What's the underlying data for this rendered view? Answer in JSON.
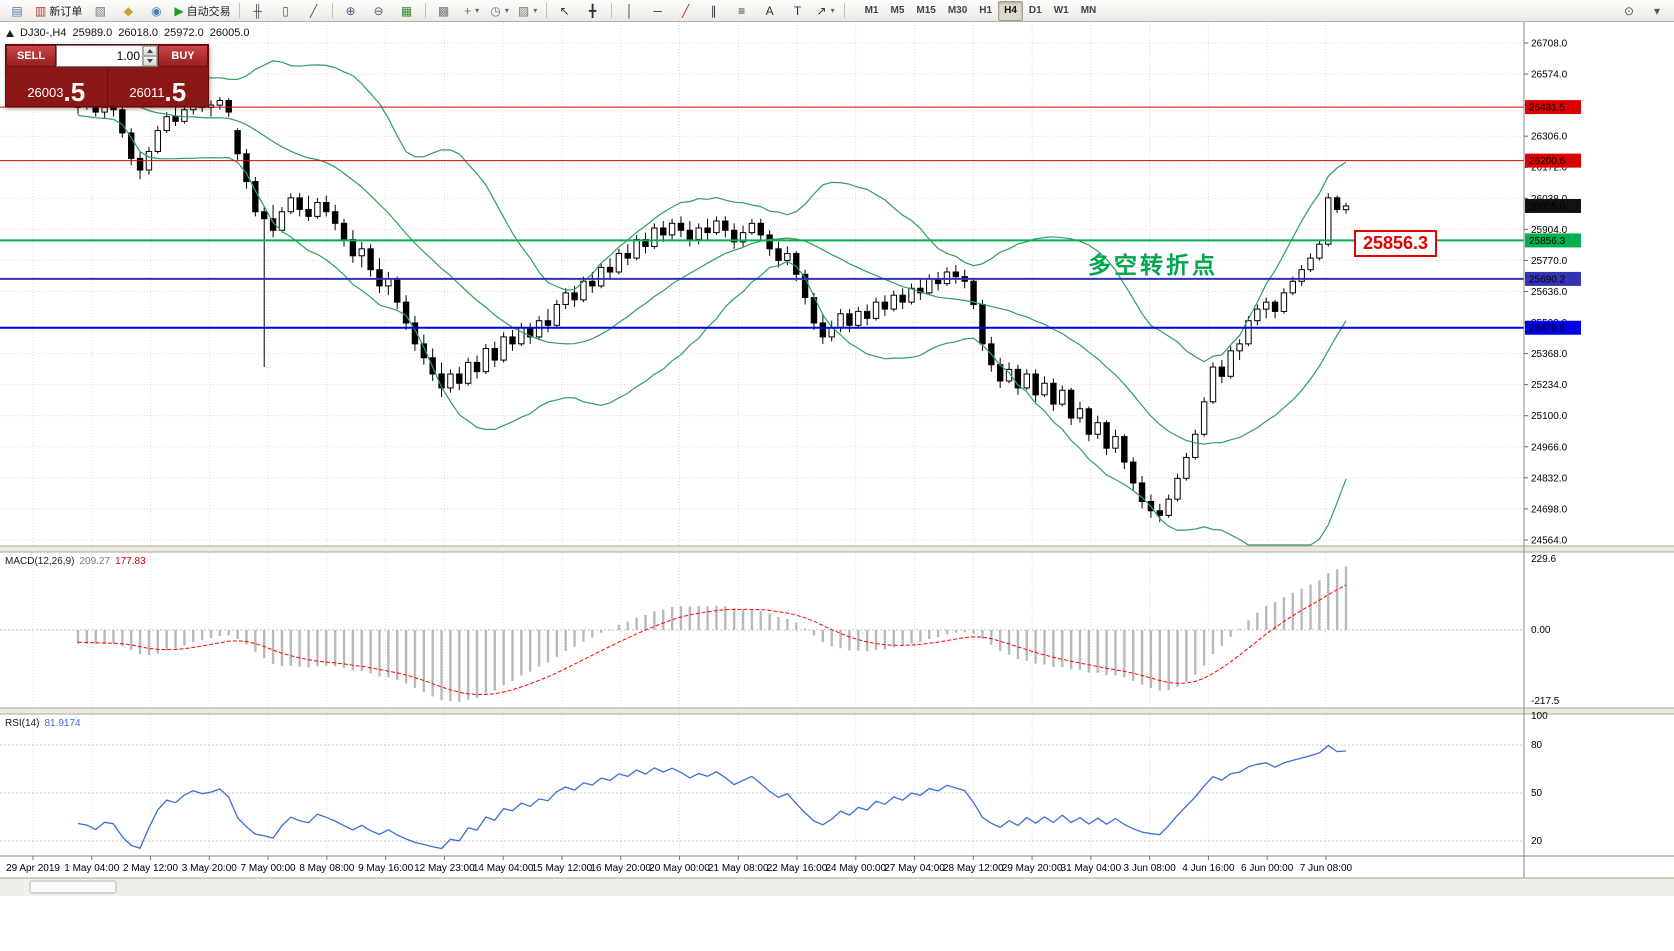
{
  "toolbar": {
    "groups": [
      [
        {
          "name": "mini-chart-icon",
          "glyph": "▤",
          "color": "#4a7ab5"
        },
        {
          "name": "new-order-button",
          "glyph": "▥",
          "color": "#b03a3a",
          "label": "新订单"
        },
        {
          "name": "chart-windows-icon",
          "glyph": "▧",
          "color": "#777777"
        },
        {
          "name": "profiles-icon",
          "glyph": "◆",
          "color": "#c9a227"
        },
        {
          "name": "market-watch-icon",
          "glyph": "◉",
          "color": "#4a7ab5"
        },
        {
          "name": "autotrading-button",
          "glyph": "▶",
          "color": "#1d9e1d",
          "label": "自动交易"
        }
      ],
      [
        {
          "name": "bar-chart-type-icon",
          "glyph": "╫",
          "color": "#555555"
        },
        {
          "name": "candlestick-chart-type-icon",
          "glyph": "▯",
          "color": "#555555"
        },
        {
          "name": "line-chart-type-icon",
          "glyph": "╱",
          "color": "#555555"
        }
      ],
      [
        {
          "name": "zoom-in-icon",
          "glyph": "⊕",
          "color": "#4f5d8a"
        },
        {
          "name": "zoom-out-icon",
          "glyph": "⊖",
          "color": "#4f5d8a"
        },
        {
          "name": "tile-windows-icon",
          "glyph": "▦",
          "color": "#2c8c2c"
        }
      ],
      [
        {
          "name": "navigator-icon",
          "glyph": "▩",
          "color": "#777777"
        },
        {
          "name": "indicators-icon",
          "glyph": "+",
          "color": "#1d9e1d",
          "dropdown": true
        },
        {
          "name": "periods-icon",
          "glyph": "◷",
          "color": "#4a7ab5",
          "dropdown": true
        },
        {
          "name": "templates-icon",
          "glyph": "▨",
          "color": "#777777",
          "dropdown": true
        }
      ],
      [
        {
          "name": "cursor-icon",
          "glyph": "↖",
          "color": "#333333"
        },
        {
          "name": "crosshair-icon",
          "glyph": "╋",
          "color": "#333333"
        }
      ],
      [
        {
          "name": "vertical-line-icon",
          "glyph": "│",
          "color": "#333333"
        },
        {
          "name": "horizontal-line-icon",
          "glyph": "─",
          "color": "#333333"
        },
        {
          "name": "trendline-icon",
          "glyph": "╱",
          "color": "#cc2a2a"
        },
        {
          "name": "channel-icon",
          "glyph": "∥",
          "color": "#333333"
        },
        {
          "name": "fibonacci-icon",
          "glyph": "≡",
          "color": "#333333"
        },
        {
          "name": "text-icon",
          "glyph": "A",
          "color": "#333333"
        },
        {
          "name": "text-label-icon",
          "glyph": "T",
          "color": "#333333"
        },
        {
          "name": "arrows-icon",
          "glyph": "↗",
          "color": "#333333",
          "dropdown": true
        }
      ]
    ],
    "timeframes": [
      "M1",
      "M5",
      "M15",
      "M30",
      "H1",
      "H4",
      "D1",
      "W1",
      "MN"
    ],
    "active_timeframe": "H4",
    "right_icons": [
      {
        "name": "search-icon",
        "glyph": "⊙",
        "color": "#555555"
      },
      {
        "name": "quick-help-icon",
        "glyph": "▾",
        "color": "#555555"
      }
    ]
  },
  "chart_header": {
    "symbol_period": "DJ30-,H4",
    "open": "25989.0",
    "high": "26018.0",
    "low": "25972.0",
    "close": "26005.0"
  },
  "trade_panel": {
    "sell_label": "SELL",
    "buy_label": "BUY",
    "volume": "1.00",
    "sell_price_main": "26003",
    "sell_price_big": ".5",
    "buy_price_main": "26011",
    "buy_price_big": ".5"
  },
  "chart": {
    "annotation_text": "多空转折点",
    "annotation_color": "#00a64f",
    "floating_price_label": "25856.3",
    "current_price_tag": {
      "label": "26005.0",
      "price": 26005.0,
      "color": "#111111"
    },
    "hlines": [
      {
        "price": 26431.5,
        "label": "26431.5",
        "color": "#dd0000",
        "width": 1
      },
      {
        "price": 26200.6,
        "label": "26200.6",
        "color": "#dd0000",
        "width": 1
      },
      {
        "price": 25856.3,
        "label": "25856.3",
        "color": "#00b050",
        "width": 2
      },
      {
        "price": 25690.2,
        "label": "25690.2",
        "color": "#3434b0",
        "width": 2
      },
      {
        "price": 25479.6,
        "label": "25479.6",
        "color": "#0000e6",
        "width": 2
      }
    ],
    "price_axis_ticks": [
      "26708.0",
      "26574.0",
      "26440.0",
      "26306.0",
      "26172.0",
      "26038.0",
      "25904.0",
      "25770.0",
      "25636.0",
      "25502.0",
      "25368.0",
      "25234.0",
      "25100.0",
      "24966.0",
      "24832.0",
      "24698.0",
      "24564.0"
    ]
  },
  "macd_panel": {
    "name": "MACD(12,26,9)",
    "value_main": "209.27",
    "value_signal": "177.83",
    "axis_labels": [
      "229.6",
      "0.00",
      "-217.5"
    ]
  },
  "rsi_panel": {
    "name": "RSI(14)",
    "value": "81.9174",
    "axis_labels": [
      "100",
      "80",
      "50",
      "20"
    ],
    "levels": [
      80,
      50,
      20
    ]
  },
  "chart_data": {
    "type": "candlestick",
    "symbol": "DJ30-",
    "timeframe": "H4",
    "x_labels": [
      "29 Apr 2019",
      "1 May 04:00",
      "2 May 12:00",
      "3 May 20:00",
      "7 May 00:00",
      "8 May 08:00",
      "9 May 16:00",
      "12 May 23:00",
      "14 May 04:00",
      "15 May 12:00",
      "16 May 20:00",
      "20 May 00:00",
      "21 May 08:00",
      "22 May 16:00",
      "24 May 00:00",
      "27 May 04:00",
      "28 May 12:00",
      "29 May 20:00",
      "31 May 04:00",
      "3 Jun 08:00",
      "4 Jun 16:00",
      "6 Jun 00:00",
      "7 Jun 08:00"
    ],
    "overlays": [
      {
        "name": "Bollinger Bands",
        "period": 20,
        "deviation": 2
      }
    ],
    "offscreen_history_closes": [
      26640,
      26610,
      26630,
      26600,
      26580,
      26600,
      26560,
      26540,
      26560,
      26520,
      26500,
      26520,
      26490,
      26470,
      26490,
      26460,
      26450,
      26470,
      26440,
      26430
    ],
    "candles": [
      [
        26430,
        26470,
        26400,
        26450
      ],
      [
        26450,
        26480,
        26420,
        26440
      ],
      [
        26440,
        26460,
        26390,
        26410
      ],
      [
        26410,
        26450,
        26380,
        26430
      ],
      [
        26430,
        26450,
        26390,
        26420
      ],
      [
        26420,
        26430,
        26300,
        26320
      ],
      [
        26320,
        26340,
        26180,
        26210
      ],
      [
        26210,
        26240,
        26120,
        26160
      ],
      [
        26160,
        26260,
        26140,
        26240
      ],
      [
        26240,
        26350,
        26230,
        26330
      ],
      [
        26330,
        26410,
        26320,
        26390
      ],
      [
        26390,
        26430,
        26350,
        26370
      ],
      [
        26370,
        26440,
        26360,
        26420
      ],
      [
        26420,
        26470,
        26400,
        26450
      ],
      [
        26450,
        26480,
        26410,
        26430
      ],
      [
        26430,
        26460,
        26390,
        26440
      ],
      [
        26440,
        26475,
        26420,
        26460
      ],
      [
        26460,
        26470,
        26390,
        26410
      ],
      [
        26330,
        26340,
        26200,
        26230
      ],
      [
        26230,
        26250,
        26080,
        26110
      ],
      [
        26110,
        26130,
        25960,
        25980
      ],
      [
        25980,
        26000,
        25310,
        25950
      ],
      [
        25950,
        26010,
        25870,
        25900
      ],
      [
        25900,
        26000,
        25890,
        25980
      ],
      [
        25980,
        26060,
        25970,
        26040
      ],
      [
        26040,
        26060,
        25960,
        25990
      ],
      [
        25990,
        26050,
        25940,
        25960
      ],
      [
        25960,
        26040,
        25950,
        26020
      ],
      [
        26020,
        26050,
        25960,
        25980
      ],
      [
        25980,
        26010,
        25900,
        25930
      ],
      [
        25930,
        25950,
        25830,
        25860
      ],
      [
        25860,
        25900,
        25760,
        25790
      ],
      [
        25790,
        25850,
        25740,
        25820
      ],
      [
        25820,
        25840,
        25700,
        25730
      ],
      [
        25730,
        25780,
        25630,
        25660
      ],
      [
        25660,
        25720,
        25620,
        25690
      ],
      [
        25690,
        25700,
        25560,
        25590
      ],
      [
        25590,
        25620,
        25470,
        25500
      ],
      [
        25500,
        25530,
        25380,
        25410
      ],
      [
        25410,
        25450,
        25320,
        25350
      ],
      [
        25350,
        25390,
        25250,
        25280
      ],
      [
        25280,
        25330,
        25180,
        25220
      ],
      [
        25220,
        25300,
        25200,
        25280
      ],
      [
        25280,
        25310,
        25210,
        25240
      ],
      [
        25240,
        25350,
        25230,
        25330
      ],
      [
        25330,
        25360,
        25260,
        25290
      ],
      [
        25290,
        25410,
        25280,
        25390
      ],
      [
        25390,
        25420,
        25310,
        25340
      ],
      [
        25340,
        25460,
        25330,
        25440
      ],
      [
        25440,
        25470,
        25380,
        25410
      ],
      [
        25410,
        25500,
        25400,
        25480
      ],
      [
        25480,
        25500,
        25410,
        25440
      ],
      [
        25440,
        25530,
        25430,
        25510
      ],
      [
        25510,
        25560,
        25460,
        25490
      ],
      [
        25490,
        25600,
        25480,
        25580
      ],
      [
        25580,
        25650,
        25560,
        25630
      ],
      [
        25630,
        25660,
        25570,
        25600
      ],
      [
        25600,
        25700,
        25590,
        25680
      ],
      [
        25680,
        25720,
        25630,
        25660
      ],
      [
        25660,
        25760,
        25650,
        25740
      ],
      [
        25740,
        25780,
        25690,
        25720
      ],
      [
        25720,
        25820,
        25710,
        25800
      ],
      [
        25800,
        25840,
        25750,
        25780
      ],
      [
        25780,
        25880,
        25770,
        25860
      ],
      [
        25860,
        25890,
        25800,
        25830
      ],
      [
        25830,
        25930,
        25820,
        25910
      ],
      [
        25910,
        25940,
        25850,
        25880
      ],
      [
        25880,
        25950,
        25860,
        25930
      ],
      [
        25930,
        25960,
        25870,
        25900
      ],
      [
        25900,
        25940,
        25830,
        25860
      ],
      [
        25860,
        25930,
        25840,
        25910
      ],
      [
        25910,
        25950,
        25860,
        25890
      ],
      [
        25890,
        25960,
        25880,
        25940
      ],
      [
        25940,
        25960,
        25870,
        25900
      ],
      [
        25900,
        25930,
        25820,
        25850
      ],
      [
        25850,
        25920,
        25830,
        25890
      ],
      [
        25890,
        25950,
        25880,
        25930
      ],
      [
        25930,
        25950,
        25860,
        25880
      ],
      [
        25880,
        25900,
        25790,
        25820
      ],
      [
        25820,
        25850,
        25740,
        25770
      ],
      [
        25770,
        25830,
        25750,
        25800
      ],
      [
        25800,
        25810,
        25680,
        25710
      ],
      [
        25710,
        25730,
        25580,
        25610
      ],
      [
        25610,
        25630,
        25470,
        25500
      ],
      [
        25500,
        25540,
        25410,
        25440
      ],
      [
        25440,
        25510,
        25420,
        25480
      ],
      [
        25480,
        25560,
        25460,
        25540
      ],
      [
        25540,
        25560,
        25460,
        25490
      ],
      [
        25490,
        25570,
        25480,
        25550
      ],
      [
        25550,
        25580,
        25490,
        25520
      ],
      [
        25520,
        25610,
        25510,
        25590
      ],
      [
        25590,
        25620,
        25530,
        25560
      ],
      [
        25560,
        25640,
        25550,
        25620
      ],
      [
        25620,
        25650,
        25560,
        25590
      ],
      [
        25590,
        25670,
        25580,
        25650
      ],
      [
        25650,
        25690,
        25600,
        25630
      ],
      [
        25630,
        25710,
        25620,
        25690
      ],
      [
        25690,
        25720,
        25640,
        25670
      ],
      [
        25670,
        25740,
        25660,
        25720
      ],
      [
        25720,
        25750,
        25670,
        25700
      ],
      [
        25700,
        25730,
        25650,
        25680
      ],
      [
        25680,
        25690,
        25560,
        25580
      ],
      [
        25580,
        25600,
        25380,
        25410
      ],
      [
        25410,
        25440,
        25290,
        25320
      ],
      [
        25320,
        25350,
        25220,
        25250
      ],
      [
        25250,
        25330,
        25240,
        25300
      ],
      [
        25300,
        25320,
        25190,
        25220
      ],
      [
        25220,
        25300,
        25210,
        25280
      ],
      [
        25280,
        25300,
        25160,
        25190
      ],
      [
        25190,
        25270,
        25180,
        25240
      ],
      [
        25240,
        25260,
        25120,
        25150
      ],
      [
        25150,
        25230,
        25140,
        25210
      ],
      [
        25210,
        25220,
        25060,
        25090
      ],
      [
        25090,
        25160,
        25070,
        25130
      ],
      [
        25130,
        25140,
        24990,
        25020
      ],
      [
        25020,
        25100,
        25000,
        25070
      ],
      [
        25070,
        25080,
        24930,
        24960
      ],
      [
        24960,
        25040,
        24940,
        25010
      ],
      [
        25010,
        25020,
        24870,
        24900
      ],
      [
        24900,
        24920,
        24780,
        24810
      ],
      [
        24810,
        24840,
        24700,
        24730
      ],
      [
        24730,
        24760,
        24660,
        24690
      ],
      [
        24690,
        24720,
        24640,
        24670
      ],
      [
        24670,
        24760,
        24660,
        24740
      ],
      [
        24740,
        24850,
        24730,
        24830
      ],
      [
        24830,
        24940,
        24820,
        24920
      ],
      [
        24920,
        25040,
        24910,
        25020
      ],
      [
        25020,
        25180,
        25010,
        25160
      ],
      [
        25160,
        25330,
        25150,
        25310
      ],
      [
        25310,
        25340,
        25240,
        25270
      ],
      [
        25270,
        25400,
        25260,
        25380
      ],
      [
        25380,
        25430,
        25340,
        25410
      ],
      [
        25410,
        25530,
        25400,
        25510
      ],
      [
        25510,
        25580,
        25490,
        25560
      ],
      [
        25560,
        25610,
        25520,
        25590
      ],
      [
        25590,
        25600,
        25520,
        25550
      ],
      [
        25550,
        25650,
        25540,
        25630
      ],
      [
        25630,
        25700,
        25620,
        25680
      ],
      [
        25680,
        25750,
        25660,
        25730
      ],
      [
        25730,
        25800,
        25720,
        25780
      ],
      [
        25780,
        25860,
        25770,
        25840
      ],
      [
        25840,
        26060,
        25830,
        26040
      ],
      [
        26040,
        26050,
        25975,
        25990
      ],
      [
        25989,
        26018,
        25972,
        26005
      ]
    ],
    "colors": {
      "bull": "#ffffff",
      "bear": "#000000",
      "outline": "#000000",
      "bollinger": "#2f9e60",
      "macd_histogram": "#b9b9b9",
      "macd_signal": "#ff0000",
      "rsi_line": "#3b6fd4",
      "grid": "#dcdcdc"
    }
  }
}
